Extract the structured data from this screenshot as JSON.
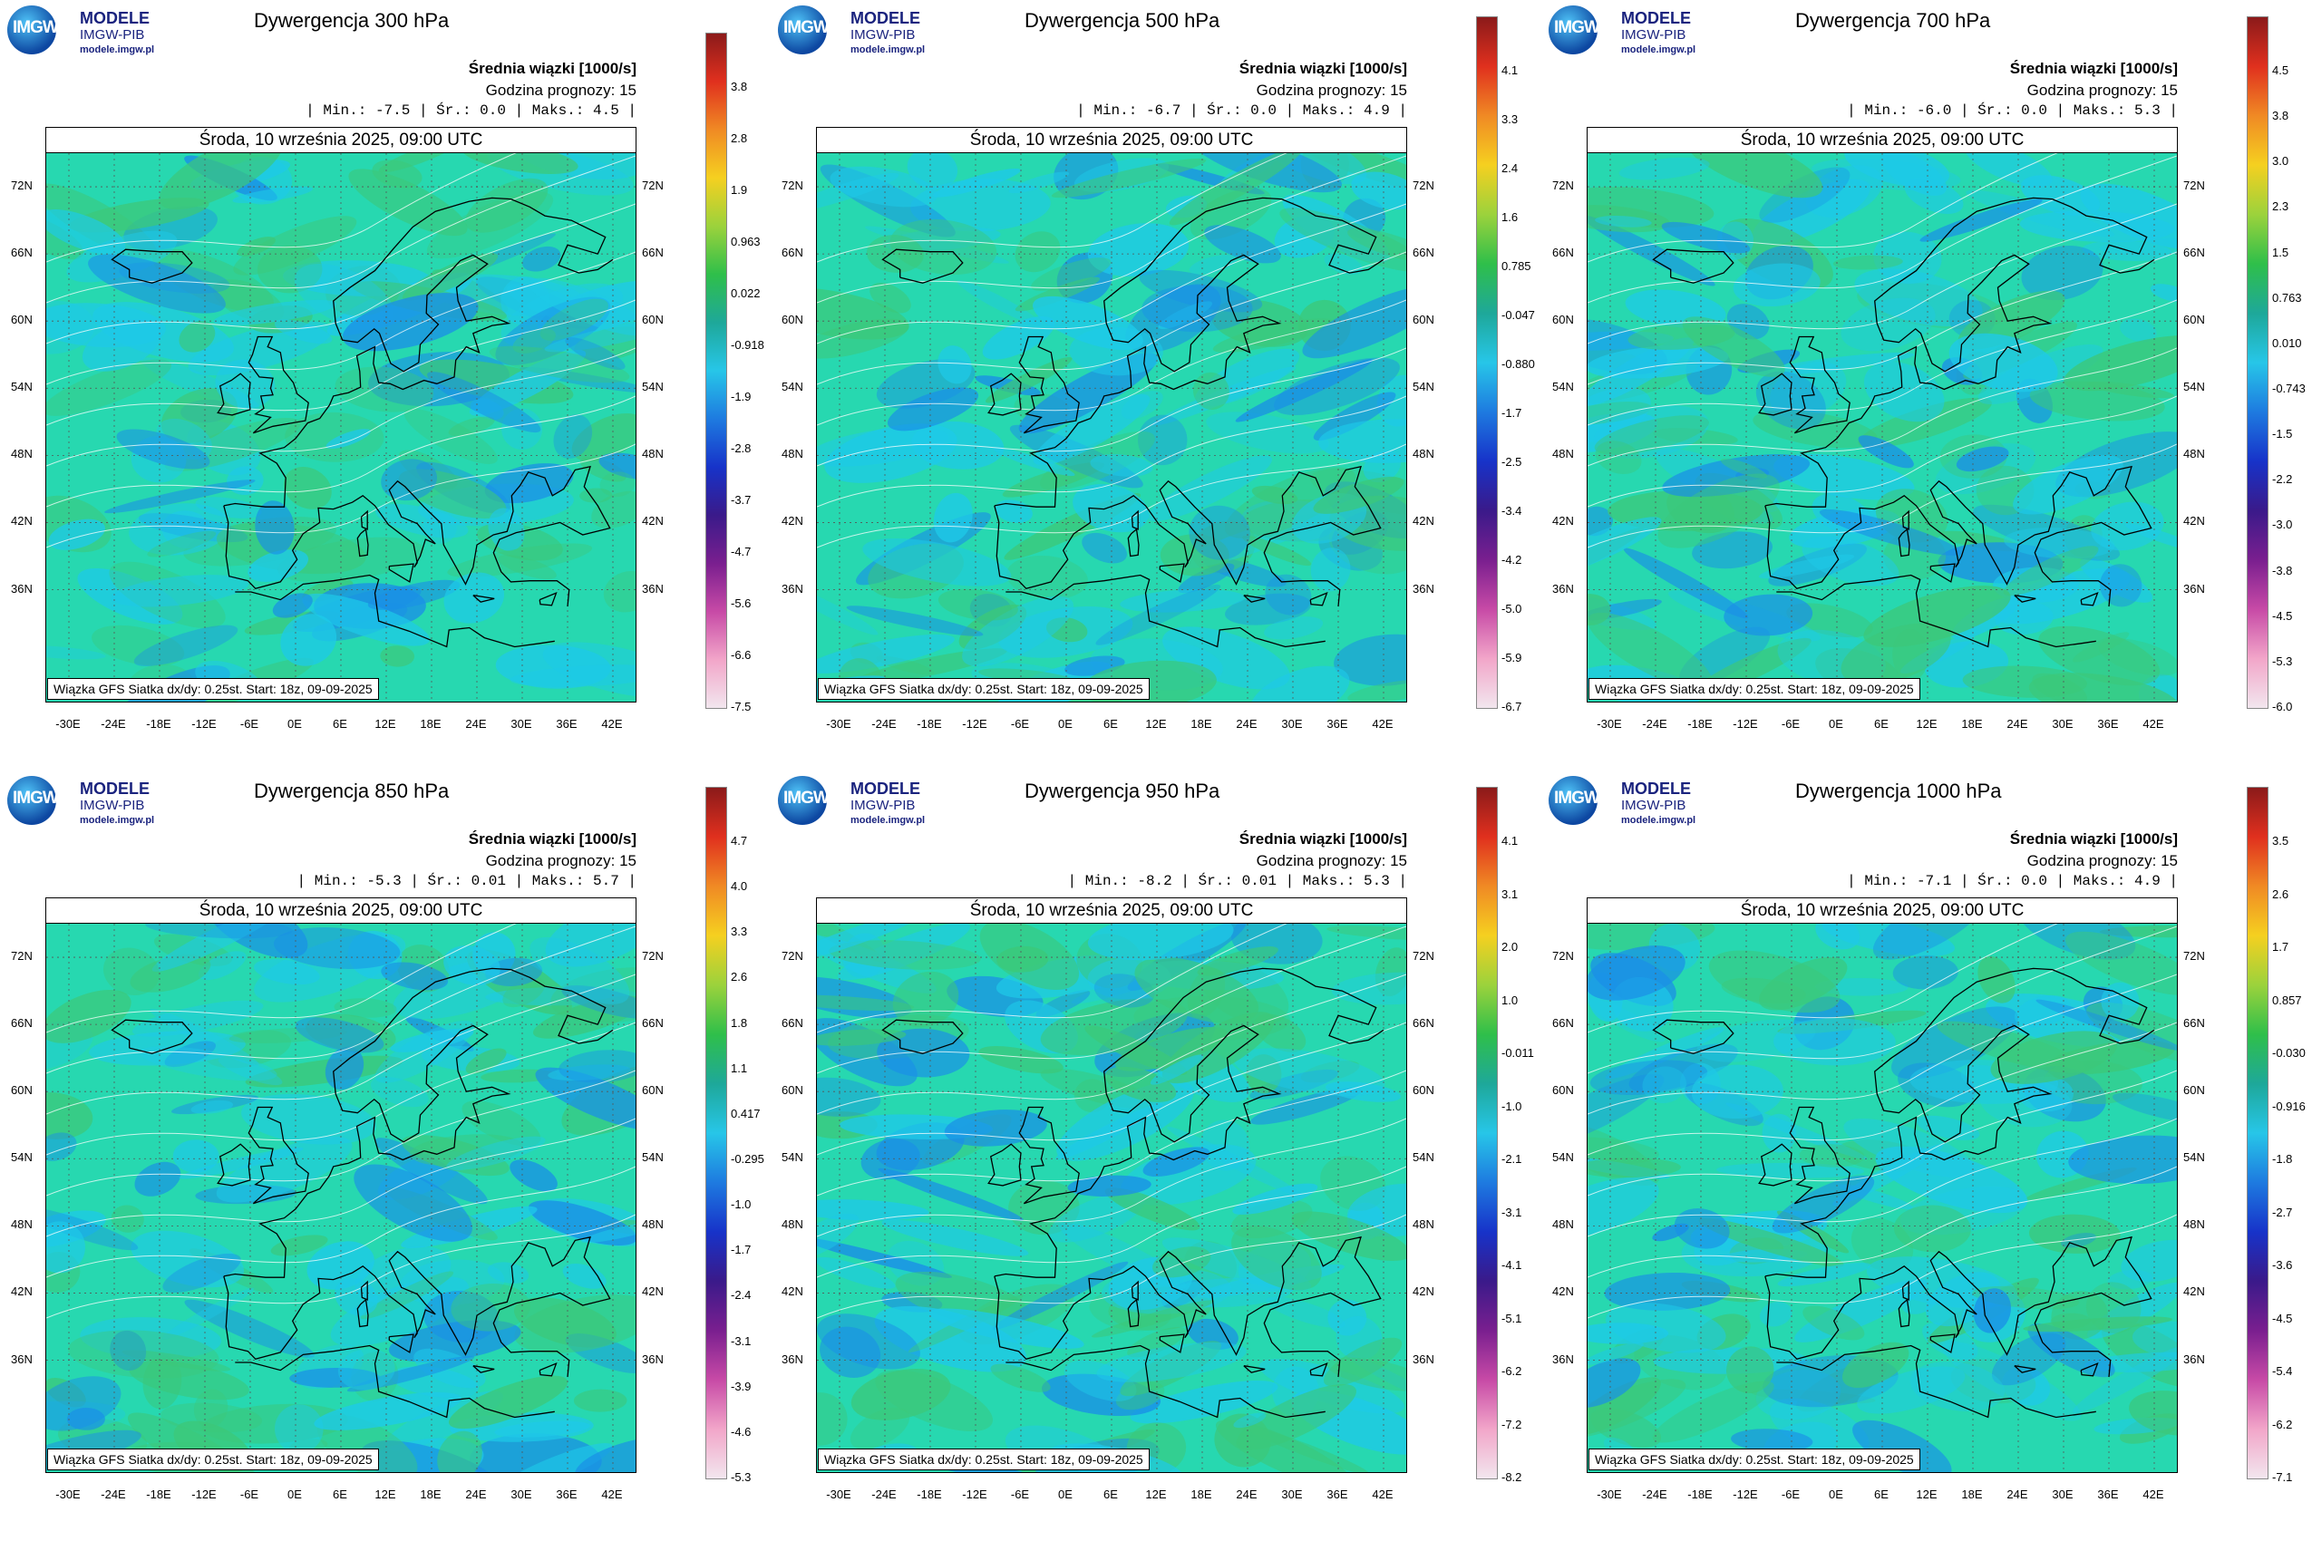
{
  "app": {
    "logo_line1": "MODELE",
    "logo_line2": "IMGW-PIB",
    "logo_url": "modele.imgw.pl",
    "logo_badge": "IMGW"
  },
  "common": {
    "series_label": "Średnia wiązki [1000/s]",
    "forecast_hour": "Godzina prognozy: 15",
    "date_line": "Środa, 10 września 2025, 09:00 UTC",
    "footer": "Wiązka GFS Siatka dx/dy: 0.25st. Start: 18z, 09-09-2025",
    "lat_labels": [
      "72N",
      "66N",
      "60N",
      "54N",
      "48N",
      "42N",
      "36N"
    ],
    "lon_labels": [
      "-30E",
      "-24E",
      "-18E",
      "-12E",
      "-6E",
      "0E",
      "6E",
      "12E",
      "18E",
      "24E",
      "30E",
      "36E",
      "42E"
    ]
  },
  "colors": {
    "field_base": "#27d8b0",
    "field_cyan": "#1ec9e8",
    "field_blue": "#1a8fe6",
    "field_green": "#3cc87a",
    "coast": "#000000",
    "contour": "#ffffff"
  },
  "panels": [
    {
      "title": "Dywergencja 300 hPa",
      "stats": "| Min.: -7.5 | Śr.: 0.0 | Maks.: 4.5 |",
      "colorbar_ticks": [
        "3.8",
        "2.8",
        "1.9",
        "0.963",
        "0.022",
        "-0.918",
        "-1.9",
        "-2.8",
        "-3.7",
        "-4.7",
        "-5.6",
        "-6.6",
        "-7.5"
      ]
    },
    {
      "title": "Dywergencja 500 hPa",
      "stats": "| Min.: -6.7 | Śr.: 0.0 | Maks.: 4.9 |",
      "colorbar_ticks": [
        "4.1",
        "3.3",
        "2.4",
        "1.6",
        "0.785",
        "-0.047",
        "-0.880",
        "-1.7",
        "-2.5",
        "-3.4",
        "-4.2",
        "-5.0",
        "-5.9",
        "-6.7"
      ]
    },
    {
      "title": "Dywergencja 700 hPa",
      "stats": "| Min.: -6.0 | Śr.: 0.0 | Maks.: 5.3 |",
      "colorbar_ticks": [
        "4.5",
        "3.8",
        "3.0",
        "2.3",
        "1.5",
        "0.763",
        "0.010",
        "-0.743",
        "-1.5",
        "-2.2",
        "-3.0",
        "-3.8",
        "-4.5",
        "-5.3",
        "-6.0"
      ]
    },
    {
      "title": "Dywergencja 850 hPa",
      "stats": "| Min.: -5.3 | Śr.: 0.01 | Maks.: 5.7 |",
      "colorbar_ticks": [
        "4.7",
        "4.0",
        "3.3",
        "2.6",
        "1.8",
        "1.1",
        "0.417",
        "-0.295",
        "-1.0",
        "-1.7",
        "-2.4",
        "-3.1",
        "-3.9",
        "-4.6",
        "-5.3"
      ]
    },
    {
      "title": "Dywergencja 950 hPa",
      "stats": "| Min.: -8.2 | Śr.: 0.01 | Maks.: 5.3 |",
      "colorbar_ticks": [
        "4.1",
        "3.1",
        "2.0",
        "1.0",
        "-0.011",
        "-1.0",
        "-2.1",
        "-3.1",
        "-4.1",
        "-5.1",
        "-6.2",
        "-7.2",
        "-8.2"
      ]
    },
    {
      "title": "Dywergencja 1000 hPa",
      "stats": "| Min.: -7.1 | Śr.: 0.0 | Maks.: 4.9 |",
      "colorbar_ticks": [
        "3.5",
        "2.6",
        "1.7",
        "0.857",
        "-0.030",
        "-0.916",
        "-1.8",
        "-2.7",
        "-3.6",
        "-4.5",
        "-5.4",
        "-6.2",
        "-7.1"
      ]
    }
  ]
}
